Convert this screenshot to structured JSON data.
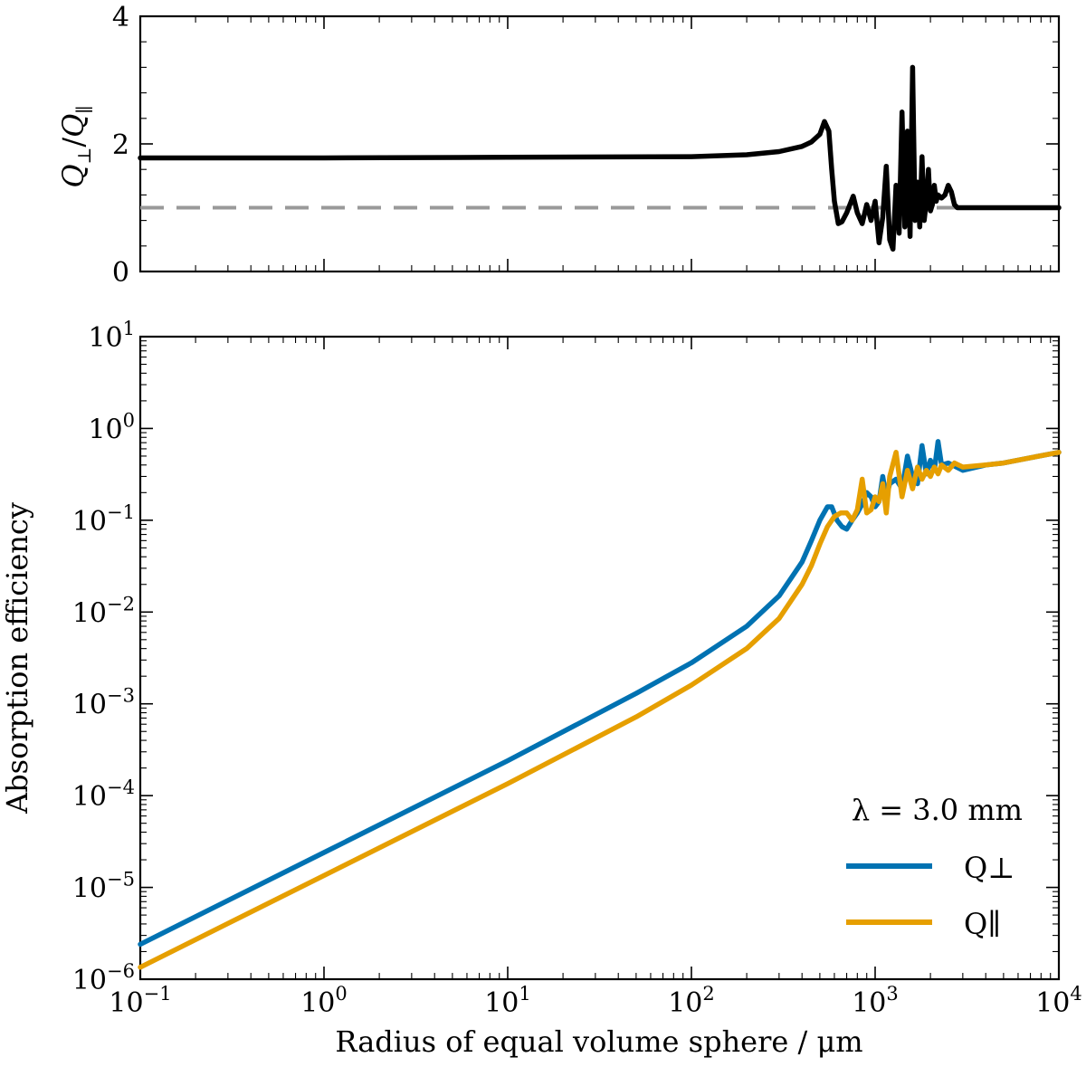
{
  "figure": {
    "legend_annotation": "λ = 3.0 mm",
    "legend_position": "lower-right",
    "xlabel": "Radius of equal volume sphere / μm",
    "xscale": "log",
    "xlim": [
      0.1,
      10000
    ],
    "x_tick_labels": [
      {
        "value": 0.1,
        "base": "10",
        "exp": "−1"
      },
      {
        "value": 1,
        "base": "10",
        "exp": "0"
      },
      {
        "value": 10,
        "base": "10",
        "exp": "1"
      },
      {
        "value": 100,
        "base": "10",
        "exp": "2"
      },
      {
        "value": 1000,
        "base": "10",
        "exp": "3"
      },
      {
        "value": 10000,
        "base": "10",
        "exp": "4"
      }
    ]
  },
  "chart_data": [
    {
      "type": "line",
      "panel": "top",
      "ylabel": "Q⊥/Q∥",
      "yscale": "linear",
      "ylim": [
        0,
        4
      ],
      "y_tick_labels": [
        "0",
        "2",
        "4"
      ],
      "y_tick_values": [
        0,
        2,
        4
      ],
      "grid": false,
      "reference_line": {
        "y": 1.0,
        "style": "dashed",
        "color": "#999999"
      },
      "series": [
        {
          "color": "#000000",
          "x": [
            0.1,
            1,
            10,
            100,
            200,
            300,
            400,
            450,
            500,
            530,
            560,
            580,
            600,
            630,
            660,
            700,
            760,
            800,
            850,
            900,
            950,
            1000,
            1050,
            1100,
            1150,
            1200,
            1250,
            1300,
            1350,
            1400,
            1450,
            1500,
            1550,
            1600,
            1650,
            1700,
            1750,
            1800,
            1850,
            1900,
            1950,
            2000,
            2050,
            2100,
            2150,
            2200,
            2300,
            2400,
            2500,
            2600,
            2700,
            2800,
            3000,
            5000,
            10000
          ],
          "y": [
            1.78,
            1.78,
            1.79,
            1.8,
            1.83,
            1.88,
            1.96,
            2.03,
            2.15,
            2.35,
            2.2,
            1.6,
            1.1,
            0.75,
            0.78,
            0.92,
            1.18,
            0.92,
            0.75,
            1.05,
            0.8,
            1.1,
            0.45,
            0.85,
            1.65,
            0.5,
            0.35,
            1.35,
            0.6,
            2.5,
            0.7,
            2.2,
            0.55,
            3.2,
            0.8,
            1.4,
            0.7,
            1.8,
            0.8,
            1.1,
            1.6,
            0.95,
            1.05,
            1.35,
            1.1,
            1.2,
            1.15,
            1.2,
            1.35,
            1.25,
            1.05,
            1.0,
            1.0,
            1.0,
            1.0
          ]
        }
      ]
    },
    {
      "type": "line",
      "panel": "bottom",
      "ylabel": "Absorption efficiency",
      "yscale": "log",
      "ylim": [
        1e-06,
        10
      ],
      "y_tick_labels": [
        {
          "value": 1e-06,
          "base": "10",
          "exp": "−6"
        },
        {
          "value": 1e-05,
          "base": "10",
          "exp": "−5"
        },
        {
          "value": 0.0001,
          "base": "10",
          "exp": "−4"
        },
        {
          "value": 0.001,
          "base": "10",
          "exp": "−3"
        },
        {
          "value": 0.01,
          "base": "10",
          "exp": "−2"
        },
        {
          "value": 0.1,
          "base": "10",
          "exp": "−1"
        },
        {
          "value": 1,
          "base": "10",
          "exp": "0"
        },
        {
          "value": 10,
          "base": "10",
          "exp": "1"
        }
      ],
      "grid": false,
      "series": [
        {
          "name": "Q⊥",
          "color": "#0072b2",
          "x": [
            0.1,
            1,
            10,
            50,
            100,
            200,
            300,
            400,
            450,
            500,
            550,
            580,
            620,
            660,
            700,
            750,
            800,
            850,
            900,
            950,
            1000,
            1050,
            1100,
            1150,
            1200,
            1300,
            1400,
            1500,
            1600,
            1700,
            1800,
            1900,
            2000,
            2100,
            2200,
            2300,
            2500,
            3000,
            4000,
            5000,
            7000,
            10000
          ],
          "y": [
            2.4e-06,
            2.4e-05,
            0.00024,
            0.0013,
            0.0028,
            0.007,
            0.015,
            0.035,
            0.06,
            0.1,
            0.14,
            0.14,
            0.1,
            0.085,
            0.08,
            0.1,
            0.12,
            0.15,
            0.2,
            0.18,
            0.14,
            0.16,
            0.3,
            0.18,
            0.25,
            0.28,
            0.22,
            0.5,
            0.3,
            0.25,
            0.65,
            0.32,
            0.45,
            0.35,
            0.72,
            0.4,
            0.42,
            0.35,
            0.4,
            0.42,
            0.48,
            0.55
          ]
        },
        {
          "name": "Q∥",
          "color": "#e69f00",
          "x": [
            0.1,
            1,
            10,
            50,
            100,
            200,
            300,
            400,
            450,
            500,
            550,
            600,
            650,
            700,
            750,
            800,
            850,
            900,
            950,
            1000,
            1050,
            1100,
            1150,
            1200,
            1300,
            1400,
            1500,
            1600,
            1700,
            1800,
            1900,
            2000,
            2100,
            2200,
            2300,
            2500,
            2700,
            3000,
            4000,
            5000,
            7000,
            10000
          ],
          "y": [
            1.35e-06,
            1.35e-05,
            0.000135,
            0.00072,
            0.0016,
            0.004,
            0.0085,
            0.02,
            0.032,
            0.055,
            0.085,
            0.11,
            0.12,
            0.12,
            0.1,
            0.13,
            0.28,
            0.12,
            0.13,
            0.18,
            0.16,
            0.25,
            0.12,
            0.3,
            0.55,
            0.18,
            0.35,
            0.22,
            0.38,
            0.28,
            0.35,
            0.3,
            0.38,
            0.32,
            0.4,
            0.35,
            0.42,
            0.38,
            0.4,
            0.42,
            0.48,
            0.55
          ]
        }
      ]
    }
  ]
}
